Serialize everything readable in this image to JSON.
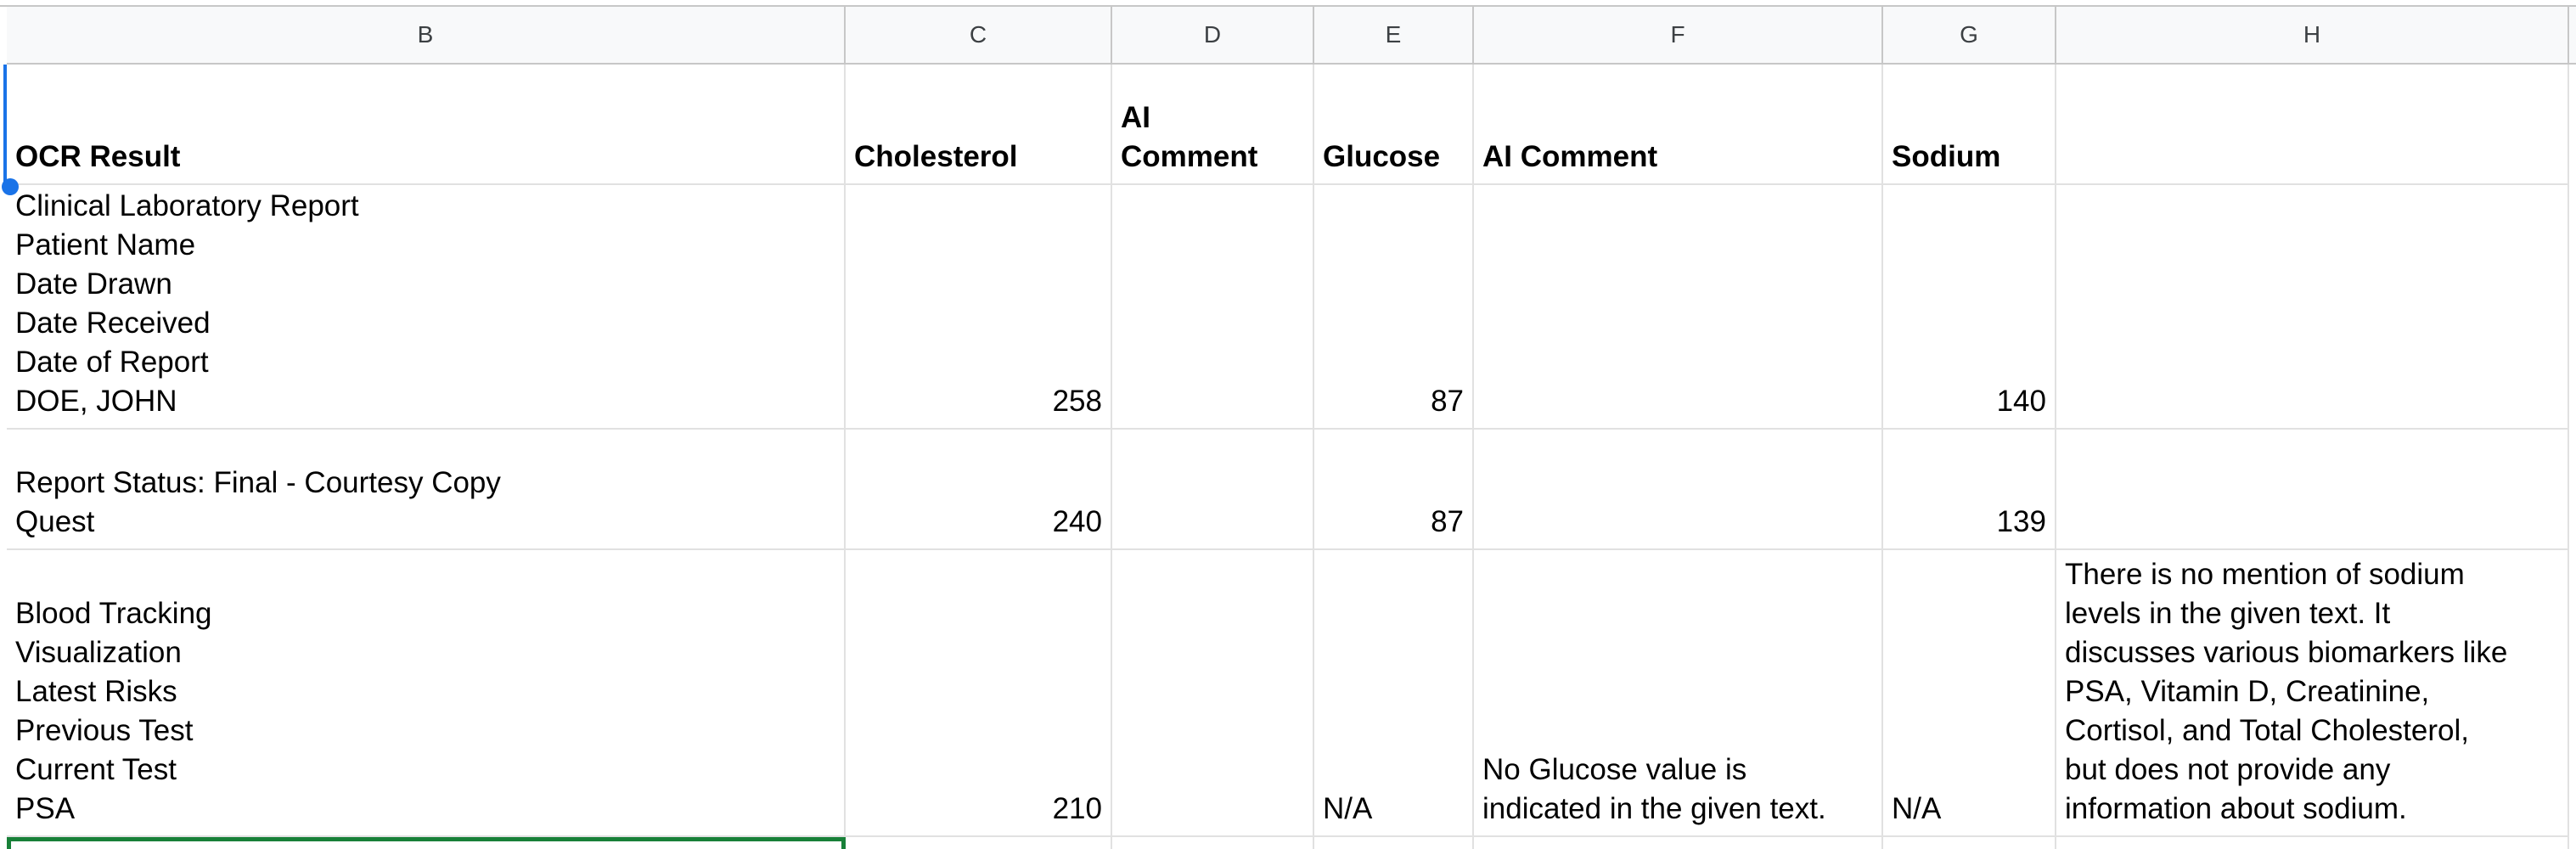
{
  "columns": [
    "B",
    "C",
    "D",
    "E",
    "F",
    "G",
    "H"
  ],
  "header_row": {
    "b": "OCR Result",
    "c": "Cholesterol",
    "d": [
      "AI",
      "Comment"
    ],
    "e": "Glucose",
    "f": "AI Comment",
    "g": "Sodium",
    "h": ""
  },
  "rows": [
    {
      "b": [
        "Clinical Laboratory Report",
        "Patient Name",
        "Date Drawn",
        "Date Received",
        "Date of Report",
        "DOE, JOHN"
      ],
      "c": "258",
      "d": "",
      "e": "87",
      "f": "",
      "g": "140",
      "h": ""
    },
    {
      "b": [
        "Report Status: Final - Courtesy Copy",
        "Quest"
      ],
      "c": "240",
      "d": "",
      "e": "87",
      "f": "",
      "g": "139",
      "h": ""
    },
    {
      "b": [
        "Blood Tracking",
        "Visualization",
        "Latest Risks",
        "Previous Test",
        "Current Test",
        "PSA"
      ],
      "c": "210",
      "d": "",
      "e": "N/A",
      "f": [
        "No Glucose value is",
        "indicated in the given text."
      ],
      "g": "N/A",
      "h": [
        "There is no mention of sodium",
        "levels in the given text. It",
        "discusses various biomarkers like",
        "PSA, Vitamin D, Creatinine,",
        "Cortisol, and Total Cholesterol,",
        "but does not provide any",
        "information about sodium."
      ]
    }
  ]
}
